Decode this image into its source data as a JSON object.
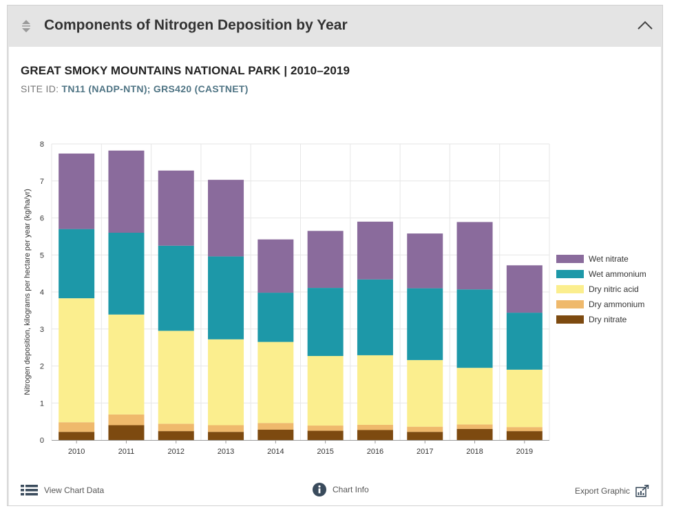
{
  "header": {
    "title": "Components of Nitrogen Deposition by Year"
  },
  "park": {
    "title": "GREAT SMOKY MOUNTAINS NATIONAL PARK | 2010–2019",
    "site_prefix": "SITE ID:",
    "site_ids": "TN11 (NADP-NTN); GRS420 (CASTNET)"
  },
  "footer": {
    "view_data_label": "View Chart Data",
    "chart_info_label": "Chart Info",
    "export_label": "Export Graphic"
  },
  "chart_data": {
    "type": "bar",
    "stacked": true,
    "categories": [
      "2010",
      "2011",
      "2012",
      "2013",
      "2014",
      "2015",
      "2016",
      "2017",
      "2018",
      "2019"
    ],
    "ylabel": "Nitrogen deposition, kilograms per hectare per year (kg/ha/yr)",
    "xlabel": "",
    "ylim": [
      0,
      8
    ],
    "yticks": [
      "0",
      "1",
      "2",
      "3",
      "4",
      "5",
      "6",
      "7",
      "8"
    ],
    "grid": true,
    "legend_position": "right",
    "series": [
      {
        "name": "Dry nitrate",
        "color": "#7d4a10",
        "values": [
          0.22,
          0.4,
          0.24,
          0.22,
          0.28,
          0.25,
          0.27,
          0.22,
          0.3,
          0.24
        ]
      },
      {
        "name": "Dry ammonium",
        "color": "#efb96c",
        "values": [
          0.26,
          0.29,
          0.2,
          0.18,
          0.18,
          0.14,
          0.14,
          0.14,
          0.12,
          0.11
        ]
      },
      {
        "name": "Dry nitric acid",
        "color": "#fbee8e",
        "values": [
          3.35,
          2.7,
          2.51,
          2.32,
          2.19,
          1.88,
          1.88,
          1.8,
          1.53,
          1.55
        ]
      },
      {
        "name": "Wet ammonium",
        "color": "#1d98a8",
        "values": [
          1.87,
          2.21,
          2.3,
          2.24,
          1.33,
          1.84,
          2.05,
          1.94,
          2.12,
          1.54
        ]
      },
      {
        "name": "Wet nitrate",
        "color": "#8a6b9c",
        "values": [
          2.04,
          2.22,
          2.03,
          2.07,
          1.44,
          1.54,
          1.56,
          1.48,
          1.82,
          1.28
        ]
      }
    ],
    "legend_order": [
      "Wet nitrate",
      "Wet ammonium",
      "Dry nitric acid",
      "Dry ammonium",
      "Dry nitrate"
    ]
  }
}
